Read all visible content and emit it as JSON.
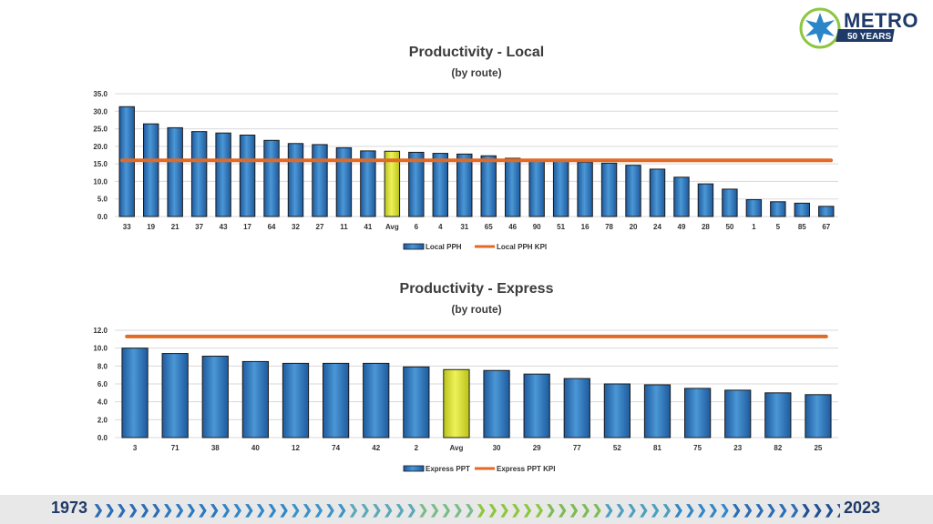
{
  "logo": {
    "name": "METRO",
    "tagline": "50 YEARS"
  },
  "footer": {
    "start_year": "1973",
    "end_year": "2023"
  },
  "colors": {
    "bar": "#3a84c8",
    "bar_edge": "#1a1a1a",
    "highlight": "#dfe830",
    "kpi": "#e06a26",
    "grid": "#d9d9d9",
    "title": "#3b3b3b"
  },
  "chart_data": [
    {
      "type": "bar",
      "title": "Productivity - Local",
      "subtitle": "(by route)",
      "categories": [
        "33",
        "19",
        "21",
        "37",
        "43",
        "17",
        "64",
        "32",
        "27",
        "11",
        "41",
        "Avg",
        "6",
        "4",
        "31",
        "65",
        "46",
        "90",
        "51",
        "16",
        "78",
        "20",
        "24",
        "49",
        "28",
        "50",
        "1",
        "5",
        "85",
        "67"
      ],
      "values": [
        31.3,
        26.4,
        25.3,
        24.2,
        23.8,
        23.2,
        21.7,
        20.8,
        20.5,
        19.6,
        18.7,
        18.6,
        18.3,
        18.0,
        17.8,
        17.3,
        16.6,
        15.9,
        15.8,
        15.5,
        15.2,
        14.6,
        13.5,
        11.2,
        9.3,
        7.8,
        4.8,
        4.2,
        3.8,
        2.9
      ],
      "highlight_category": "Avg",
      "kpi": 16.0,
      "ylim": [
        0,
        35
      ],
      "yticks": [
        "0.0",
        "5.0",
        "10.0",
        "15.0",
        "20.0",
        "25.0",
        "30.0",
        "35.0"
      ],
      "legend": {
        "bar_label": "Local PPH",
        "line_label": "Local PPH KPI",
        "placement": "bottom-center"
      }
    },
    {
      "type": "bar",
      "title": "Productivity - Express",
      "subtitle": "(by route)",
      "categories": [
        "3",
        "71",
        "38",
        "40",
        "12",
        "74",
        "42",
        "2",
        "Avg",
        "30",
        "29",
        "77",
        "52",
        "81",
        "75",
        "23",
        "82",
        "25"
      ],
      "values": [
        10.0,
        9.4,
        9.1,
        8.5,
        8.3,
        8.3,
        8.3,
        7.9,
        7.6,
        7.5,
        7.1,
        6.6,
        6.0,
        5.9,
        5.5,
        5.3,
        5.0,
        4.8
      ],
      "highlight_category": "Avg",
      "kpi": 11.3,
      "ylim": [
        0,
        12
      ],
      "yticks": [
        "0.0",
        "2.0",
        "4.0",
        "6.0",
        "8.0",
        "10.0",
        "12.0"
      ],
      "legend": {
        "bar_label": "Express PPT",
        "line_label": "Express PPT KPI",
        "placement": "bottom-center"
      }
    }
  ]
}
